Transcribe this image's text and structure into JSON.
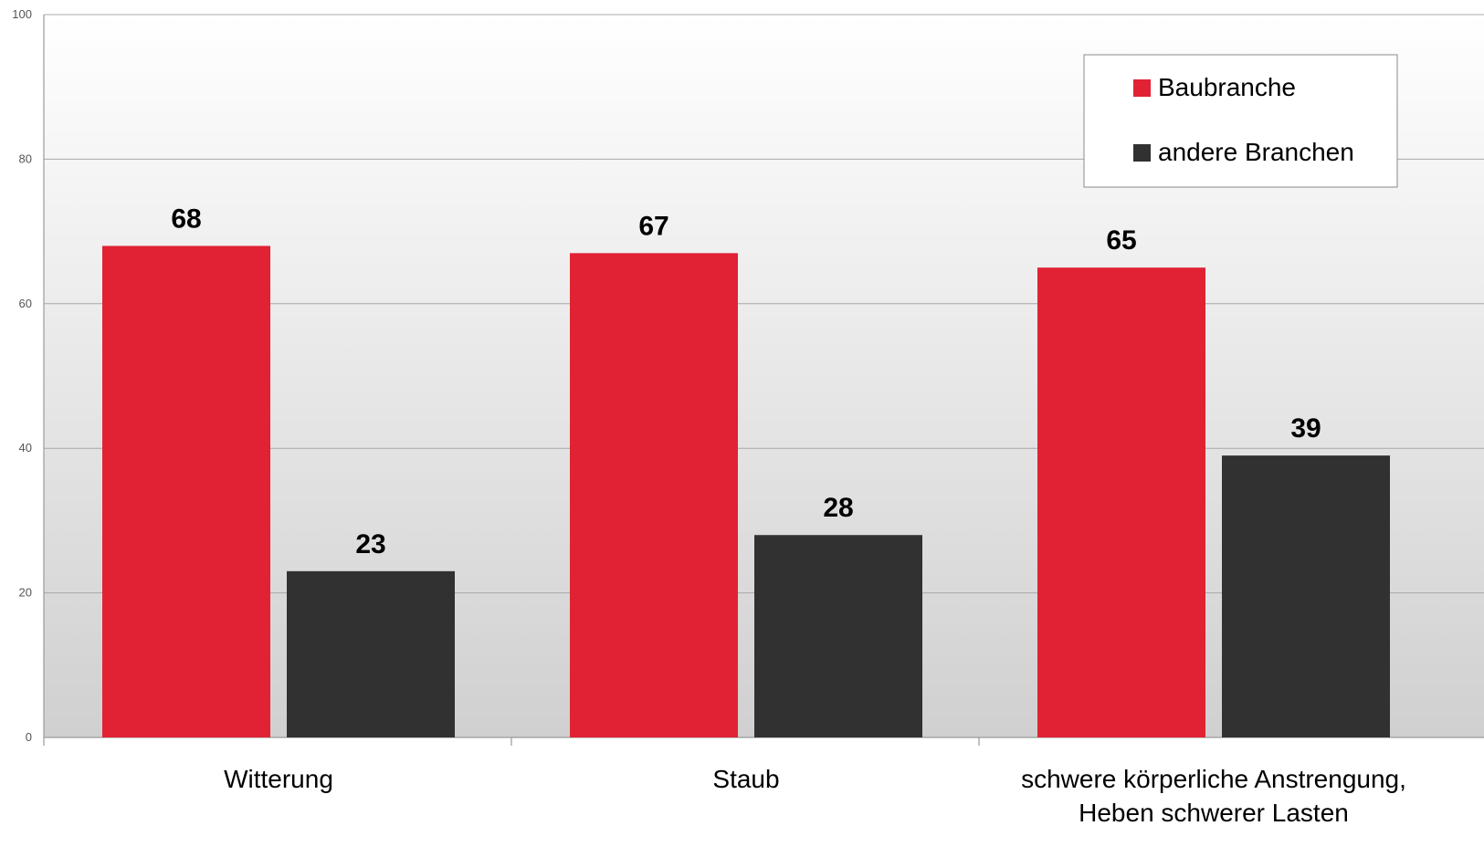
{
  "chart_data": {
    "type": "bar",
    "categories": [
      [
        "Witterung"
      ],
      [
        "Staub"
      ],
      [
        "schwere körperliche Anstrengung,",
        "Heben schwerer Lasten"
      ]
    ],
    "series": [
      {
        "name": "Baubranche",
        "values": [
          68,
          67,
          65
        ],
        "labels": [
          "68",
          "67",
          "65"
        ],
        "color": "#e02234"
      },
      {
        "name": "andere Branchen",
        "values": [
          23,
          28,
          39
        ],
        "labels": [
          "23",
          "28",
          "39"
        ],
        "color": "#313131"
      }
    ],
    "ylim": [
      0,
      100
    ],
    "yticks": [
      "0",
      "20",
      "40",
      "60",
      "80",
      "100"
    ],
    "ytick_values": [
      0,
      20,
      40,
      60,
      80,
      100
    ],
    "grid": true,
    "legend_position": "top-right",
    "title": "",
    "xlabel": "",
    "ylabel": ""
  }
}
